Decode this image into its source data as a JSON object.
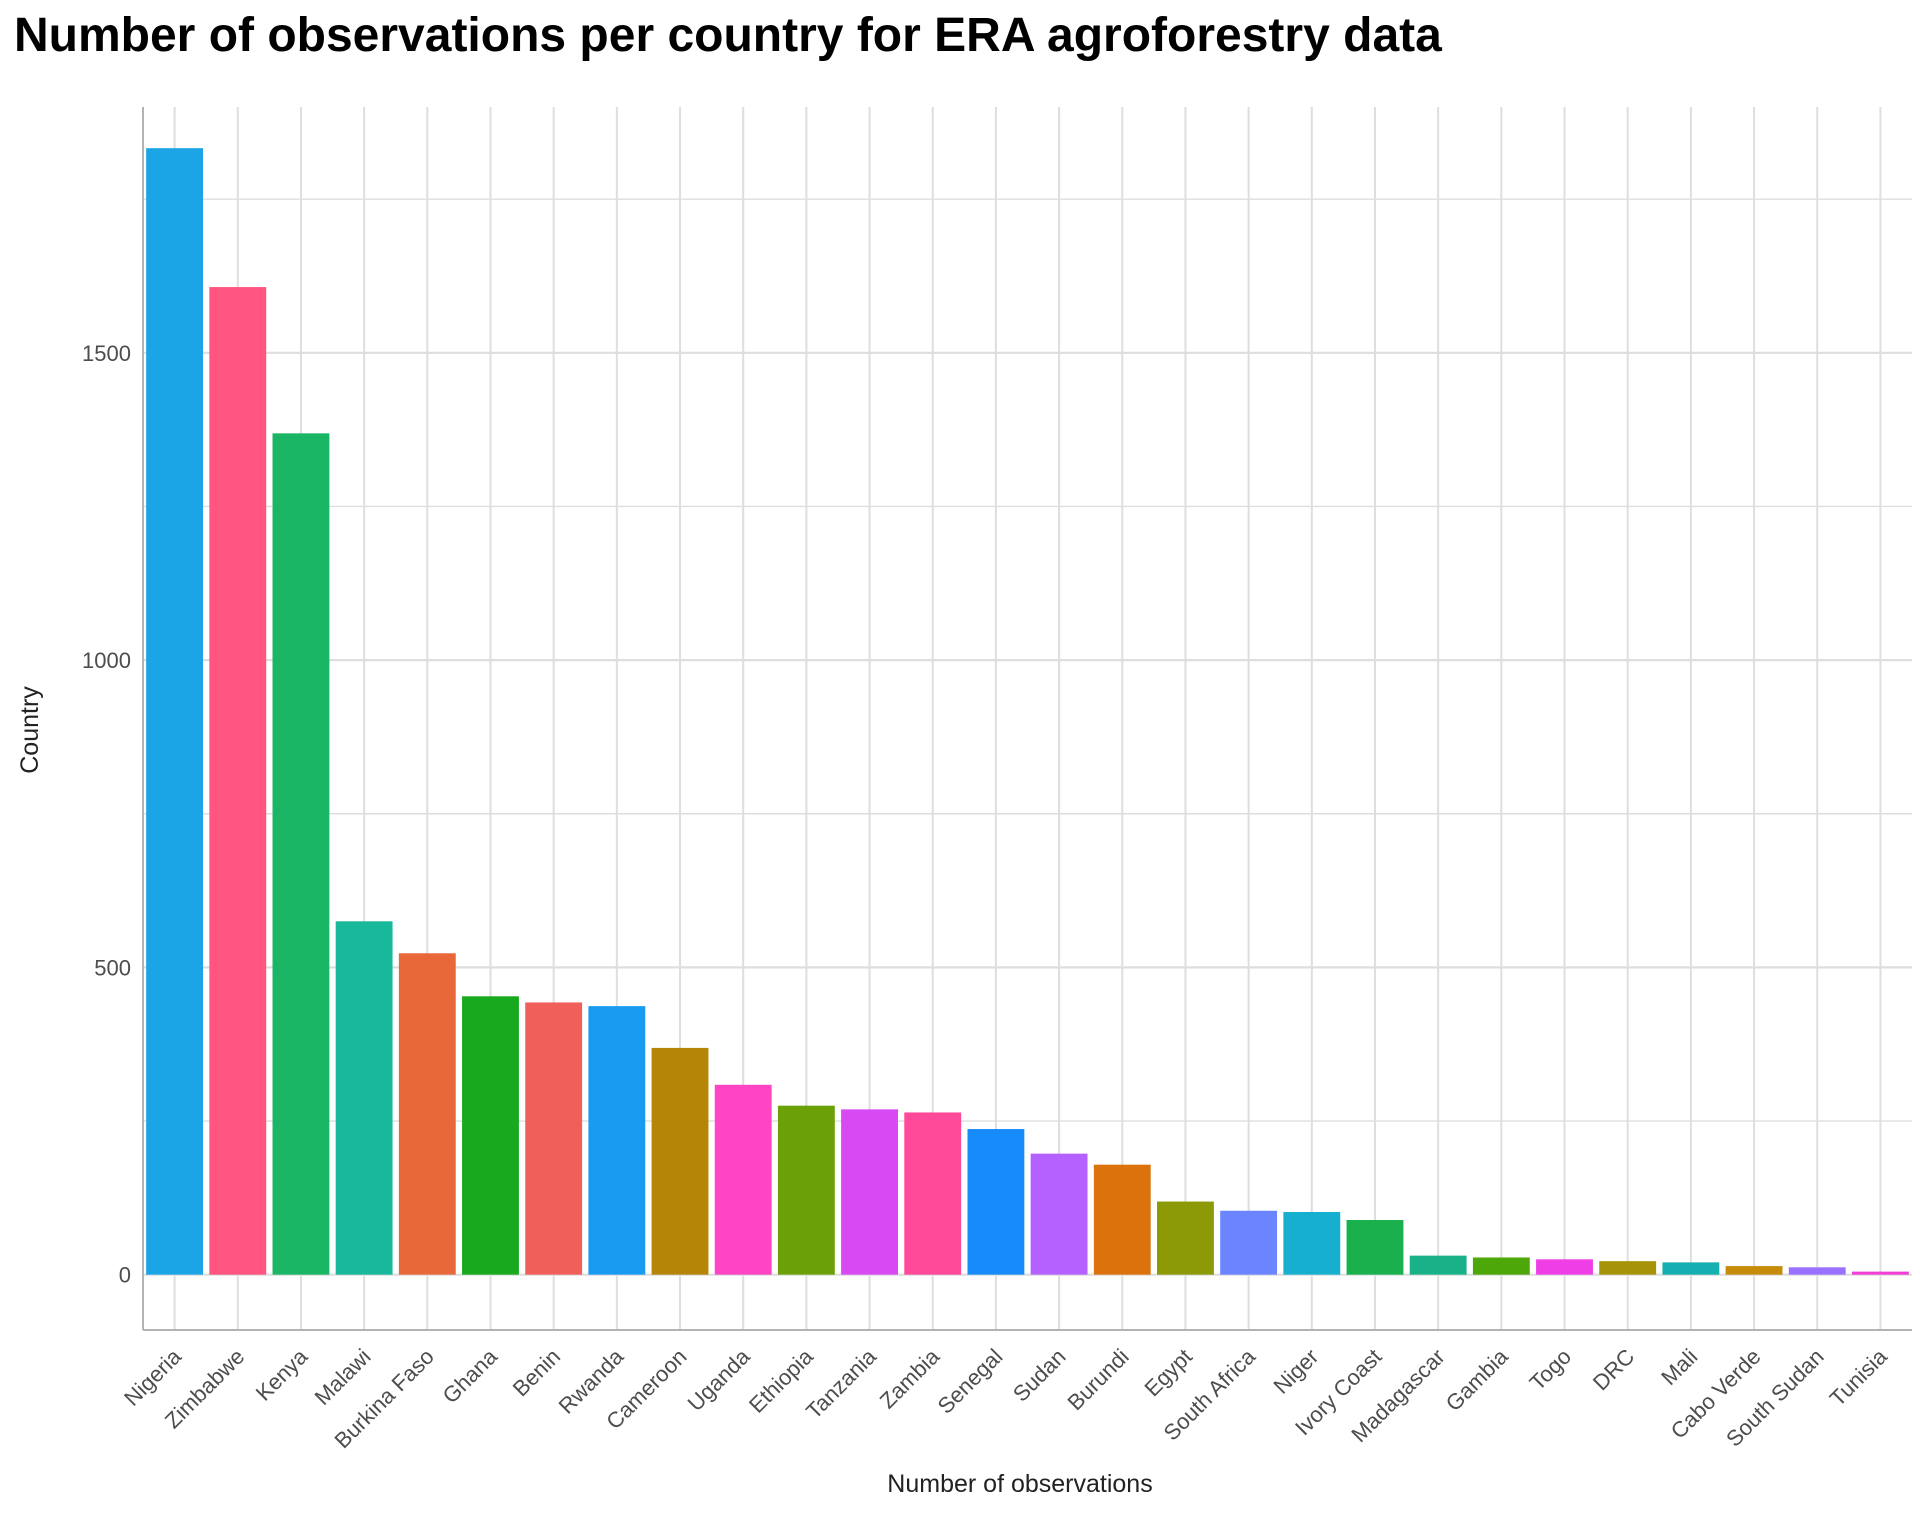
{
  "chart_data": {
    "type": "bar",
    "title": "Number of observations per country for ERA agroforestry data",
    "xlabel": "Number of observations",
    "ylabel": "Country",
    "ylim": [
      -90,
      1900
    ],
    "yticks": [
      0,
      500,
      1000,
      1500
    ],
    "grid": true,
    "legend": "none",
    "categories": [
      "Nigeria",
      "Zimbabwe",
      "Kenya",
      "Malawi",
      "Burkina Faso",
      "Ghana",
      "Benin",
      "Rwanda",
      "Cameroon",
      "Uganda",
      "Ethiopia",
      "Tanzania",
      "Zambia",
      "Senegal",
      "Sudan",
      "Burundi",
      "Egypt",
      "South Africa",
      "Niger",
      "Ivory Coast",
      "Madagascar",
      "Gambia",
      "Togo",
      "DRC",
      "Mali",
      "Cabo Verde",
      "South Sudan",
      "Tunisia"
    ],
    "values": [
      1833,
      1607,
      1369,
      575,
      523,
      453,
      443,
      437,
      369,
      309,
      275,
      269,
      264,
      237,
      197,
      179,
      119,
      104,
      102,
      89,
      31,
      28,
      25,
      22,
      20,
      14,
      12,
      5
    ],
    "colors": [
      "#1ba5e6",
      "#ff5580",
      "#1ab565",
      "#18b89a",
      "#e8683a",
      "#18a91e",
      "#f15f5a",
      "#1a9bf2",
      "#b58508",
      "#ff45c4",
      "#6ba106",
      "#d749f2",
      "#ff4a9a",
      "#168cfc",
      "#b561ff",
      "#db720b",
      "#8b9a06",
      "#6b84ff",
      "#17afd0",
      "#1ab04d",
      "#19b187",
      "#4ea708",
      "#ef3ee6",
      "#a69308",
      "#14afb0",
      "#c78b0c",
      "#9a71ff",
      "#f23ed6"
    ]
  }
}
